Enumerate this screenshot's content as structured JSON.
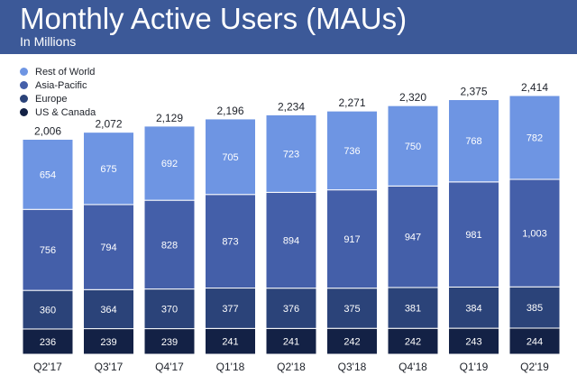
{
  "header": {
    "title": "Monthly Active Users (MAUs)",
    "subtitle": "In Millions"
  },
  "colors": {
    "header_bg": "#3c5998",
    "us_canada": "#132145",
    "europe": "#2b4379",
    "asia_pacific": "#445fa9",
    "rest_of_world": "#6e95e3"
  },
  "chart_data": {
    "type": "bar",
    "stacked": true,
    "categories": [
      "Q2'17",
      "Q3'17",
      "Q4'17",
      "Q1'18",
      "Q2'18",
      "Q3'18",
      "Q4'18",
      "Q1'19",
      "Q2'19"
    ],
    "series": [
      {
        "name": "US & Canada",
        "values": [
          236,
          239,
          239,
          241,
          241,
          242,
          242,
          243,
          244
        ],
        "labels": [
          "236",
          "239",
          "239",
          "241",
          "241",
          "242",
          "242",
          "243",
          "244"
        ]
      },
      {
        "name": "Europe",
        "values": [
          360,
          364,
          370,
          377,
          376,
          375,
          381,
          384,
          385
        ],
        "labels": [
          "360",
          "364",
          "370",
          "377",
          "376",
          "375",
          "381",
          "384",
          "385"
        ]
      },
      {
        "name": "Asia-Pacific",
        "values": [
          756,
          794,
          828,
          873,
          894,
          917,
          947,
          981,
          1003
        ],
        "labels": [
          "756",
          "794",
          "828",
          "873",
          "894",
          "917",
          "947",
          "981",
          "1,003"
        ]
      },
      {
        "name": "Rest of World",
        "values": [
          654,
          675,
          692,
          705,
          723,
          736,
          750,
          768,
          782
        ],
        "labels": [
          "654",
          "675",
          "692",
          "705",
          "723",
          "736",
          "750",
          "768",
          "782"
        ]
      }
    ],
    "totals": [
      2006,
      2072,
      2129,
      2196,
      2234,
      2271,
      2320,
      2375,
      2414
    ],
    "total_labels": [
      "2,006",
      "2,072",
      "2,129",
      "2,196",
      "2,234",
      "2,271",
      "2,320",
      "2,375",
      "2,414"
    ],
    "legend_order": [
      "Rest of World",
      "Asia-Pacific",
      "Europe",
      "US & Canada"
    ],
    "legend_position": "top-left",
    "grid": false,
    "ylim": [
      0,
      2414
    ]
  }
}
